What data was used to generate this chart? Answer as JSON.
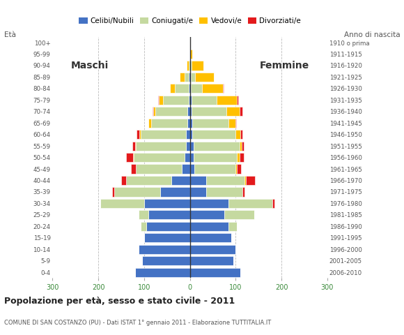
{
  "age_groups": [
    "0-4",
    "5-9",
    "10-14",
    "15-19",
    "20-24",
    "25-29",
    "30-34",
    "35-39",
    "40-44",
    "45-49",
    "50-54",
    "55-59",
    "60-64",
    "65-69",
    "70-74",
    "75-79",
    "80-84",
    "85-89",
    "90-94",
    "95-99",
    "100+"
  ],
  "birth_years": [
    "2006-2010",
    "2001-2005",
    "1996-2000",
    "1991-1995",
    "1986-1990",
    "1981-1985",
    "1976-1980",
    "1971-1975",
    "1966-1970",
    "1961-1965",
    "1956-1960",
    "1951-1955",
    "1946-1950",
    "1941-1945",
    "1936-1940",
    "1931-1935",
    "1926-1930",
    "1921-1925",
    "1916-1920",
    "1911-1915",
    "1910 o prima"
  ],
  "male_celibe": [
    120,
    105,
    112,
    100,
    95,
    90,
    100,
    65,
    40,
    18,
    12,
    8,
    8,
    5,
    5,
    3,
    3,
    2,
    0,
    0,
    0
  ],
  "male_coniugato": [
    0,
    0,
    0,
    0,
    12,
    22,
    95,
    100,
    100,
    100,
    110,
    110,
    100,
    80,
    70,
    55,
    30,
    10,
    3,
    0,
    0
  ],
  "male_vedovo": [
    0,
    0,
    0,
    0,
    0,
    0,
    0,
    0,
    0,
    0,
    2,
    2,
    3,
    5,
    5,
    10,
    10,
    10,
    4,
    0,
    0
  ],
  "male_divorziato": [
    0,
    0,
    0,
    0,
    0,
    0,
    0,
    5,
    10,
    10,
    15,
    5,
    5,
    1,
    1,
    1,
    0,
    0,
    0,
    0,
    0
  ],
  "female_celibe": [
    110,
    95,
    100,
    90,
    85,
    75,
    85,
    35,
    35,
    10,
    8,
    8,
    5,
    5,
    4,
    3,
    2,
    2,
    0,
    0,
    0
  ],
  "female_coniugato": [
    0,
    0,
    0,
    0,
    18,
    65,
    95,
    80,
    85,
    90,
    95,
    100,
    95,
    80,
    75,
    55,
    25,
    10,
    4,
    0,
    0
  ],
  "female_vedovo": [
    0,
    0,
    0,
    0,
    0,
    0,
    0,
    0,
    2,
    2,
    5,
    5,
    10,
    15,
    30,
    45,
    45,
    40,
    25,
    5,
    0
  ],
  "female_divorziato": [
    0,
    0,
    0,
    0,
    0,
    0,
    5,
    5,
    20,
    10,
    10,
    5,
    5,
    1,
    5,
    2,
    1,
    0,
    0,
    0,
    0
  ],
  "color_celibe": "#4472c4",
  "color_coniugato": "#c5d9a0",
  "color_vedovo": "#ffc000",
  "color_divorziato": "#e31a1c",
  "title": "Popolazione per età, sesso e stato civile - 2011",
  "subtitle": "COMUNE DI SAN COSTANZO (PU) - Dati ISTAT 1° gennaio 2011 - Elaborazione TUTTITALIA.IT",
  "label_eta": "Età",
  "label_anno": "Anno di nascita",
  "label_maschi": "Maschi",
  "label_femmine": "Femmine",
  "legend_celibe": "Celibi/Nubili",
  "legend_coniugato": "Coniugati/e",
  "legend_vedovo": "Vedovi/e",
  "legend_divorziato": "Divorziati/e",
  "xlim": 300,
  "bg_color": "#ffffff"
}
